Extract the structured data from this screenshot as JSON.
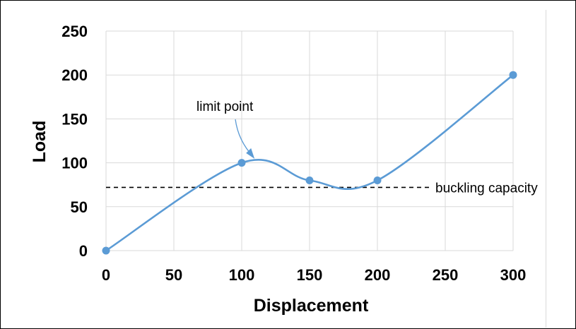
{
  "chart_data": {
    "type": "line",
    "title": "",
    "xlabel": "Displacement",
    "ylabel": "Load",
    "x_ticks": [
      "0",
      "50",
      "100",
      "150",
      "200",
      "250",
      "300"
    ],
    "y_ticks": [
      "0",
      "50",
      "100",
      "150",
      "200",
      "250"
    ],
    "xlim": [
      0,
      300
    ],
    "ylim": [
      0,
      250
    ],
    "grid": true,
    "series": [
      {
        "color": "#5b9bd5",
        "smooth": true,
        "x": [
          0,
          100,
          150,
          200,
          300
        ],
        "y": [
          0,
          100,
          80,
          80,
          200
        ]
      }
    ],
    "reference_line": {
      "y": 72,
      "style": "dashed",
      "color": "#000000",
      "label": "buckling capacity"
    },
    "annotations": [
      {
        "text": "limit point",
        "arrow_to": {
          "x": 110,
          "y": 103
        },
        "arrow_color": "#5b9bd5"
      }
    ]
  }
}
